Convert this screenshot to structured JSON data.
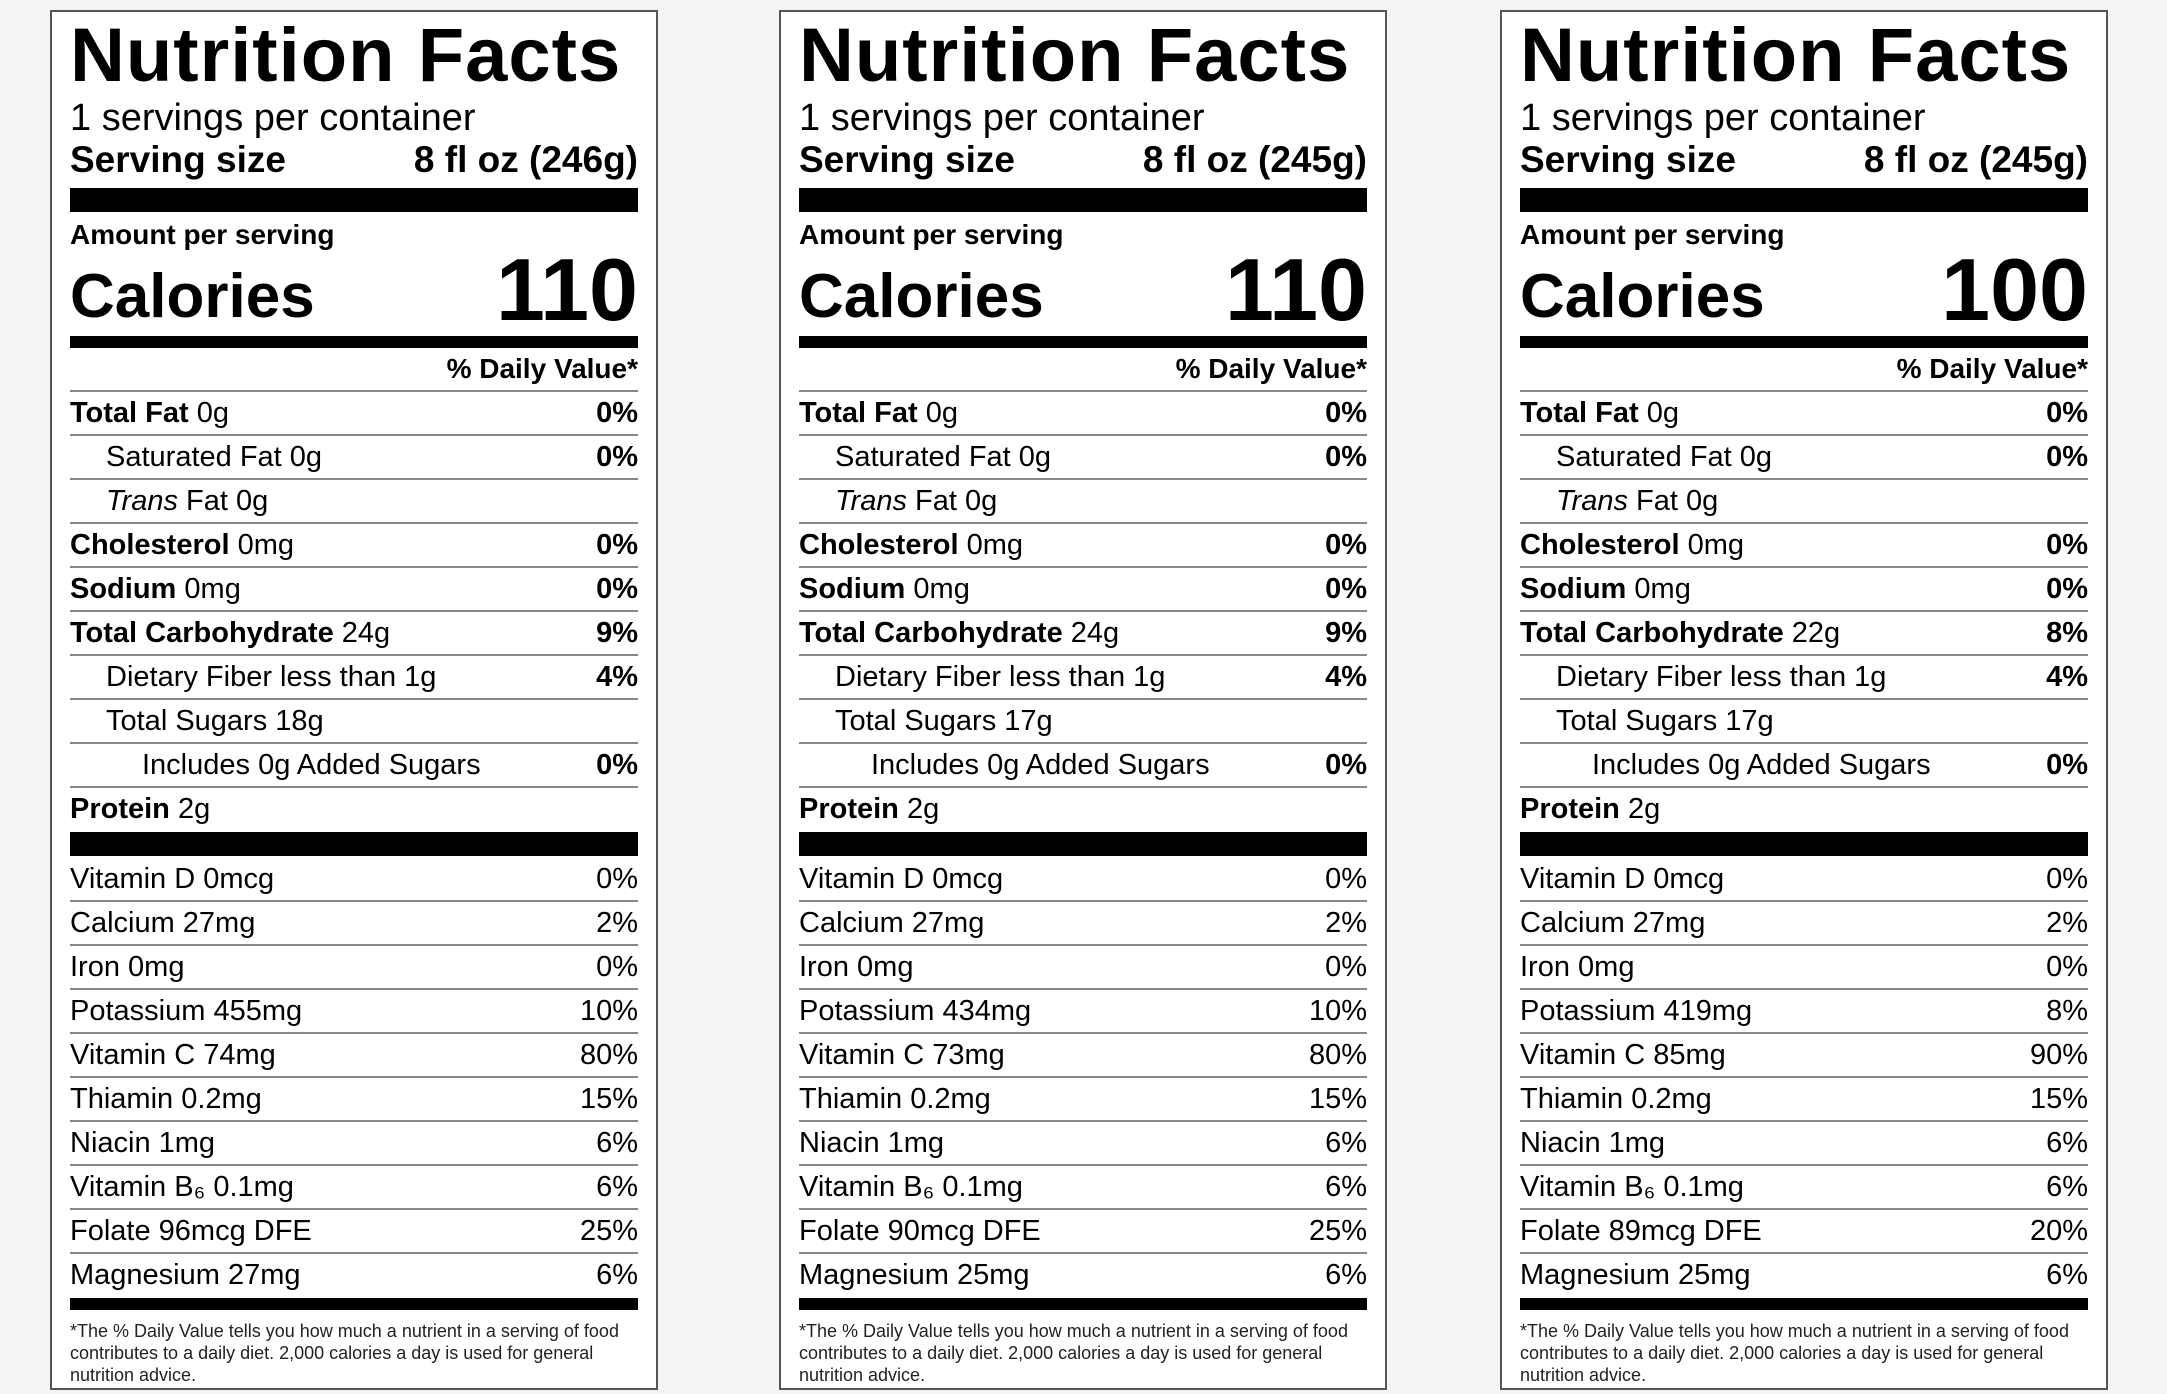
{
  "labels": [
    {
      "title": "Nutrition Facts",
      "servings": "1 servings per container",
      "serving_size_label": "Serving size",
      "serving_size_value": "8 fl oz (246g)",
      "amount_label": "Amount per serving",
      "calories_label": "Calories",
      "calories_value": "110",
      "dv_header": "% Daily Value*",
      "total_fat_name": "Total Fat",
      "total_fat_amt": "0g",
      "total_fat_pct": "0%",
      "sat_fat_label": "Saturated Fat 0g",
      "sat_fat_pct": "0%",
      "trans_word": "Trans",
      "trans_rest": "Fat 0g",
      "chol_name": "Cholesterol",
      "chol_amt": "0mg",
      "chol_pct": "0%",
      "sodium_name": "Sodium",
      "sodium_amt": "0mg",
      "sodium_pct": "0%",
      "carb_name": "Total Carbohydrate",
      "carb_amt": "24g",
      "carb_pct": "9%",
      "fiber_label": "Dietary Fiber less than 1g",
      "fiber_pct": "4%",
      "sugars_label": "Total Sugars 18g",
      "added_label": "Includes 0g Added Sugars",
      "added_pct": "0%",
      "protein_name": "Protein",
      "protein_amt": "2g",
      "vitamins": [
        {
          "label": "Vitamin D 0mcg",
          "pct": "0%"
        },
        {
          "label": "Calcium 27mg",
          "pct": "2%"
        },
        {
          "label": "Iron 0mg",
          "pct": "0%"
        },
        {
          "label": "Potassium 455mg",
          "pct": "10%"
        },
        {
          "label": "Vitamin C 74mg",
          "pct": "80%"
        },
        {
          "label": "Thiamin 0.2mg",
          "pct": "15%"
        },
        {
          "label": "Niacin 1mg",
          "pct": "6%"
        },
        {
          "label": "Vitamin B₆ 0.1mg",
          "pct": "6%"
        },
        {
          "label": "Folate 96mcg DFE",
          "pct": "25%"
        },
        {
          "label": "Magnesium 27mg",
          "pct": "6%"
        }
      ],
      "footnote": "*The % Daily Value tells you how much a nutrient in a serving of food contributes to a daily diet. 2,000 calories a day is used for general nutrition advice."
    },
    {
      "title": "Nutrition Facts",
      "servings": "1 servings per container",
      "serving_size_label": "Serving size",
      "serving_size_value": "8 fl oz (245g)",
      "amount_label": "Amount per serving",
      "calories_label": "Calories",
      "calories_value": "110",
      "dv_header": "% Daily Value*",
      "total_fat_name": "Total Fat",
      "total_fat_amt": "0g",
      "total_fat_pct": "0%",
      "sat_fat_label": "Saturated Fat 0g",
      "sat_fat_pct": "0%",
      "trans_word": "Trans",
      "trans_rest": "Fat 0g",
      "chol_name": "Cholesterol",
      "chol_amt": "0mg",
      "chol_pct": "0%",
      "sodium_name": "Sodium",
      "sodium_amt": "0mg",
      "sodium_pct": "0%",
      "carb_name": "Total Carbohydrate",
      "carb_amt": "24g",
      "carb_pct": "9%",
      "fiber_label": "Dietary Fiber less than 1g",
      "fiber_pct": "4%",
      "sugars_label": "Total Sugars 17g",
      "added_label": "Includes 0g Added Sugars",
      "added_pct": "0%",
      "protein_name": "Protein",
      "protein_amt": "2g",
      "vitamins": [
        {
          "label": "Vitamin D 0mcg",
          "pct": "0%"
        },
        {
          "label": "Calcium 27mg",
          "pct": "2%"
        },
        {
          "label": "Iron 0mg",
          "pct": "0%"
        },
        {
          "label": "Potassium 434mg",
          "pct": "10%"
        },
        {
          "label": "Vitamin C 73mg",
          "pct": "80%"
        },
        {
          "label": "Thiamin 0.2mg",
          "pct": "15%"
        },
        {
          "label": "Niacin 1mg",
          "pct": "6%"
        },
        {
          "label": "Vitamin B₆ 0.1mg",
          "pct": "6%"
        },
        {
          "label": "Folate 90mcg DFE",
          "pct": "25%"
        },
        {
          "label": "Magnesium 25mg",
          "pct": "6%"
        }
      ],
      "footnote": "*The % Daily Value tells you how much a nutrient in a serving of food contributes to a daily diet. 2,000 calories a day is used for general nutrition advice."
    },
    {
      "title": "Nutrition Facts",
      "servings": "1 servings per container",
      "serving_size_label": "Serving size",
      "serving_size_value": "8 fl oz (245g)",
      "amount_label": "Amount per serving",
      "calories_label": "Calories",
      "calories_value": "100",
      "dv_header": "% Daily Value*",
      "total_fat_name": "Total Fat",
      "total_fat_amt": "0g",
      "total_fat_pct": "0%",
      "sat_fat_label": "Saturated Fat 0g",
      "sat_fat_pct": "0%",
      "trans_word": "Trans",
      "trans_rest": "Fat 0g",
      "chol_name": "Cholesterol",
      "chol_amt": "0mg",
      "chol_pct": "0%",
      "sodium_name": "Sodium",
      "sodium_amt": "0mg",
      "sodium_pct": "0%",
      "carb_name": "Total Carbohydrate",
      "carb_amt": "22g",
      "carb_pct": "8%",
      "fiber_label": "Dietary Fiber less than 1g",
      "fiber_pct": "4%",
      "sugars_label": "Total Sugars 17g",
      "added_label": "Includes 0g Added Sugars",
      "added_pct": "0%",
      "protein_name": "Protein",
      "protein_amt": "2g",
      "vitamins": [
        {
          "label": "Vitamin D 0mcg",
          "pct": "0%"
        },
        {
          "label": "Calcium 27mg",
          "pct": "2%"
        },
        {
          "label": "Iron 0mg",
          "pct": "0%"
        },
        {
          "label": "Potassium 419mg",
          "pct": "8%"
        },
        {
          "label": "Vitamin C 85mg",
          "pct": "90%"
        },
        {
          "label": "Thiamin 0.2mg",
          "pct": "15%"
        },
        {
          "label": "Niacin 1mg",
          "pct": "6%"
        },
        {
          "label": "Vitamin B₆ 0.1mg",
          "pct": "6%"
        },
        {
          "label": "Folate 89mcg DFE",
          "pct": "20%"
        },
        {
          "label": "Magnesium 25mg",
          "pct": "6%"
        }
      ],
      "footnote": "*The % Daily Value tells you how much a nutrient in a serving of food contributes to a daily diet. 2,000 calories a day is used for general nutrition advice."
    }
  ]
}
